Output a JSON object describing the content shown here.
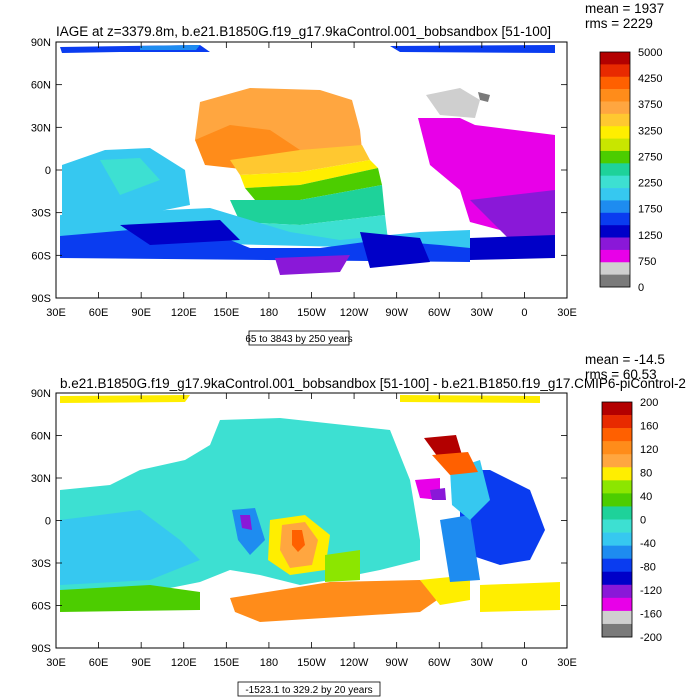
{
  "chart_data": [
    {
      "type": "heatmap",
      "title": "IAGE at z=3379.8m, b.e21.B1850G.f19_g17.9kaControl.001_bobsandbox [51-100]",
      "stats": {
        "mean": "mean = 1937",
        "rms": "rms = 2229"
      },
      "x_ticks": [
        "30E",
        "60E",
        "90E",
        "120E",
        "150E",
        "180",
        "150W",
        "120W",
        "90W",
        "60W",
        "30W",
        "0",
        "30E"
      ],
      "y_ticks": [
        "90N",
        "60N",
        "30N",
        "0",
        "30S",
        "60S",
        "90S"
      ],
      "xlim": [
        30,
        390
      ],
      "ylim": [
        -90,
        90
      ],
      "contour_info": "65 to 3843 by 250 years",
      "colorbar": {
        "labels": [
          "5000",
          "4250",
          "3750",
          "3250",
          "2750",
          "2250",
          "1750",
          "1250",
          "750",
          "0"
        ],
        "colors": [
          "#b30000",
          "#e82a00",
          "#ff6000",
          "#ff8c1a",
          "#ffa640",
          "#ffc830",
          "#ffee00",
          "#c8e600",
          "#4ccd00",
          "#1ed29a",
          "#3de0d2",
          "#36c8f0",
          "#1e8cf0",
          "#0a3cf0",
          "#0000c8",
          "#8a18d8",
          "#e800e8",
          "#cfcfcf",
          "#7a7a7a"
        ]
      }
    },
    {
      "type": "heatmap",
      "title": "b.e21.B1850G.f19_g17.9kaControl.001_bobsandbox [51-100] - b.e21.B1850.f19_g17.CMIP6-piControl-2",
      "stats": {
        "mean": "mean = -14.5",
        "rms": "rms = 60.53"
      },
      "x_ticks": [
        "30E",
        "60E",
        "90E",
        "120E",
        "150E",
        "180",
        "150W",
        "120W",
        "90W",
        "60W",
        "30W",
        "0",
        "30E"
      ],
      "y_ticks": [
        "90N",
        "60N",
        "30N",
        "0",
        "30S",
        "60S",
        "90S"
      ],
      "xlim": [
        30,
        390
      ],
      "ylim": [
        -90,
        90
      ],
      "contour_info": "-1523.1 to 329.2 by 20 years",
      "colorbar": {
        "labels": [
          "200",
          "160",
          "120",
          "80",
          "40",
          "0",
          "-40",
          "-80",
          "-120",
          "-160",
          "-200"
        ],
        "colors": [
          "#b30000",
          "#e82a00",
          "#ff6000",
          "#ff8c1a",
          "#ffa640",
          "#ffee00",
          "#8ce600",
          "#4ccd00",
          "#1ed29a",
          "#3de0d2",
          "#36c8f0",
          "#1e8cf0",
          "#0a3cf0",
          "#0000c8",
          "#8a18d8",
          "#e800e8",
          "#cfcfcf",
          "#7a7a7a"
        ]
      }
    }
  ]
}
